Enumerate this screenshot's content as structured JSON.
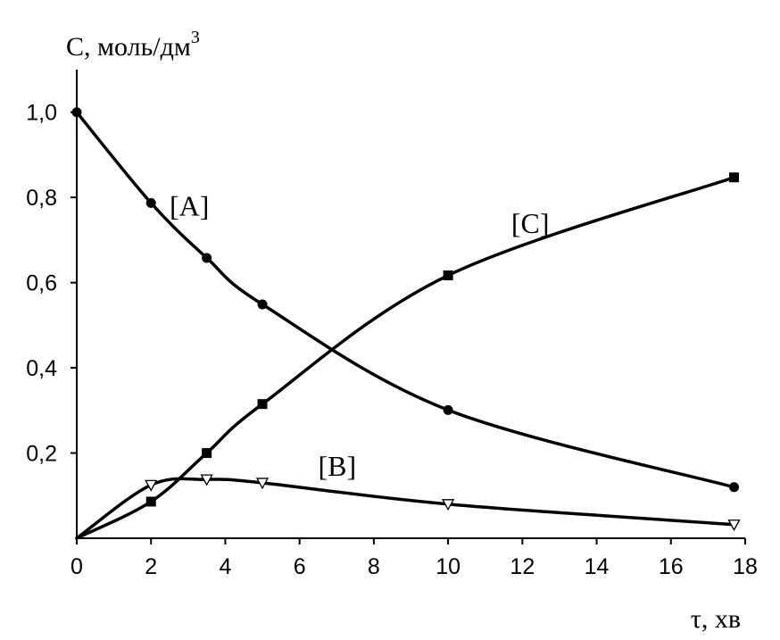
{
  "chart_data": {
    "type": "line",
    "ylabel": "С, моль/дм",
    "ylabel_superscript": "3",
    "xlabel": "τ, хв",
    "xlim": [
      0,
      18
    ],
    "ylim": [
      0,
      1.1
    ],
    "xticks": [
      0,
      2,
      4,
      6,
      8,
      10,
      12,
      14,
      16,
      18
    ],
    "xtick_labels": [
      "0",
      "2",
      "4",
      "6",
      "8",
      "10",
      "12",
      "14",
      "16",
      "18"
    ],
    "yticks": [
      0.2,
      0.4,
      0.6,
      0.8,
      1.0
    ],
    "ytick_labels": [
      "0,2",
      "0,4",
      "0,6",
      "0,8",
      "1,0"
    ],
    "grid": false,
    "legend": "none",
    "series": [
      {
        "name": "[A]",
        "marker": "circle",
        "x": [
          0,
          2,
          3.5,
          5,
          10,
          17.7
        ],
        "y": [
          1.0,
          0.787,
          0.658,
          0.549,
          0.301,
          0.12
        ]
      },
      {
        "name": "[B]",
        "marker": "triangle-down",
        "x": [
          0,
          2,
          3.5,
          5,
          10,
          17.7
        ],
        "y": [
          0.0,
          0.125,
          0.138,
          0.13,
          0.08,
          0.032
        ]
      },
      {
        "name": "[C]",
        "marker": "square",
        "x": [
          0,
          2,
          3.5,
          5,
          10,
          17.7
        ],
        "y": [
          0.0,
          0.086,
          0.2,
          0.315,
          0.617,
          0.847
        ]
      }
    ],
    "curve_label_anchors": [
      {
        "series": "[A]",
        "x": 2.5,
        "y": 0.78
      },
      {
        "series": "[C]",
        "x": 11.7,
        "y": 0.74
      },
      {
        "series": "[B]",
        "x": 6.5,
        "y": 0.17
      }
    ]
  }
}
